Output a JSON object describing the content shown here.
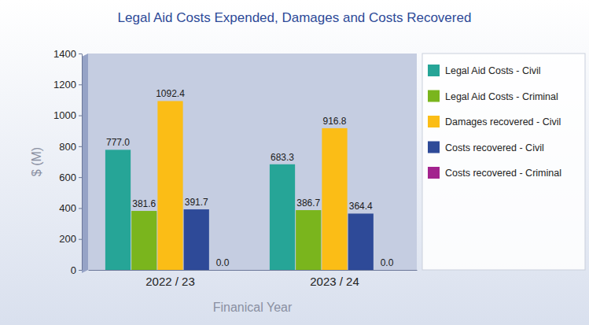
{
  "chart_data": {
    "type": "bar",
    "title": "Legal Aid Costs Expended, Damages and Costs Recovered",
    "x_label": "Finanical Year",
    "y_label": "$ (M)",
    "categories": [
      "2022 / 23",
      "2023 / 24"
    ],
    "series": [
      {
        "name": "Legal Aid Costs - Civil",
        "color": "#26a597",
        "values": [
          777.0,
          683.3
        ],
        "value_labels": [
          "777.0",
          "683.3"
        ]
      },
      {
        "name": "Legal Aid Costs - Criminal",
        "color": "#7ab51d",
        "values": [
          381.6,
          386.7
        ],
        "value_labels": [
          "381.6",
          "386.7"
        ]
      },
      {
        "name": "Damages recovered - Civil",
        "color": "#fbbd16",
        "values": [
          1092.4,
          916.8
        ],
        "value_labels": [
          "1092.4",
          "916.8"
        ]
      },
      {
        "name": "Costs recovered - Civil",
        "color": "#2e4a98",
        "values": [
          391.7,
          364.4
        ],
        "value_labels": [
          "391.7",
          "364.4"
        ]
      },
      {
        "name": "Costs recovered - Criminal",
        "color": "#a3238e",
        "values": [
          0.0,
          0.0
        ],
        "value_labels": [
          "0.0",
          "0.0"
        ]
      }
    ],
    "ylim": [
      0,
      1400
    ],
    "yticks": [
      0,
      200,
      400,
      600,
      800,
      1000,
      1200,
      1400
    ],
    "grid": false,
    "legend": "right",
    "data_labels": true
  }
}
